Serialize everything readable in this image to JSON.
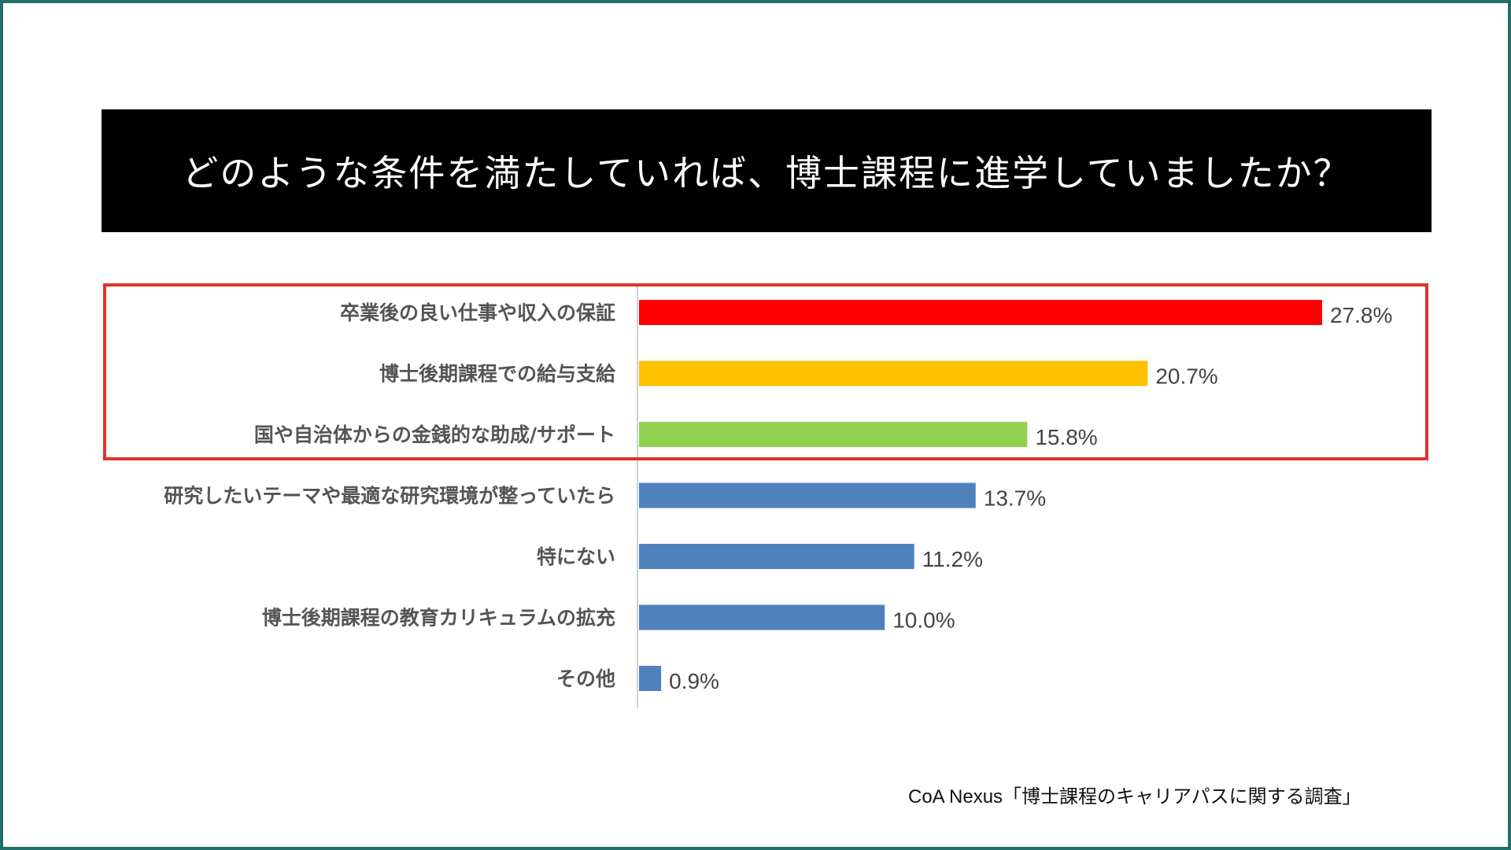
{
  "title": "どのような条件を満たしていれば、博士課程に進学していましたか？",
  "source": "CoA Nexus「博士課程のキャリアパスに関する調査」",
  "colors": {
    "highlight_border": "#e0332b",
    "frame_border": "#1f6f6a"
  },
  "chart_data": {
    "type": "bar",
    "orientation": "horizontal",
    "categories": [
      "卒業後の良い仕事や収入の保証",
      "博士後期課程での給与支給",
      "国や自治体からの金銭的な助成/サポート",
      "研究したいテーマや最適な研究環境が整っていたら",
      "特にない",
      "博士後期課程の教育カリキュラムの拡充",
      "その他"
    ],
    "values": [
      27.8,
      20.7,
      15.8,
      13.7,
      11.2,
      10.0,
      0.9
    ],
    "value_labels": [
      "27.8%",
      "20.7%",
      "15.8%",
      "13.7%",
      "11.2%",
      "10.0%",
      "0.9%"
    ],
    "bar_colors": [
      "#ff0000",
      "#ffc000",
      "#92d050",
      "#4f81bd",
      "#4f81bd",
      "#4f81bd",
      "#4f81bd"
    ],
    "xlim": [
      0,
      30
    ],
    "grid": false,
    "highlighted_categories": [
      0,
      1,
      2
    ]
  }
}
